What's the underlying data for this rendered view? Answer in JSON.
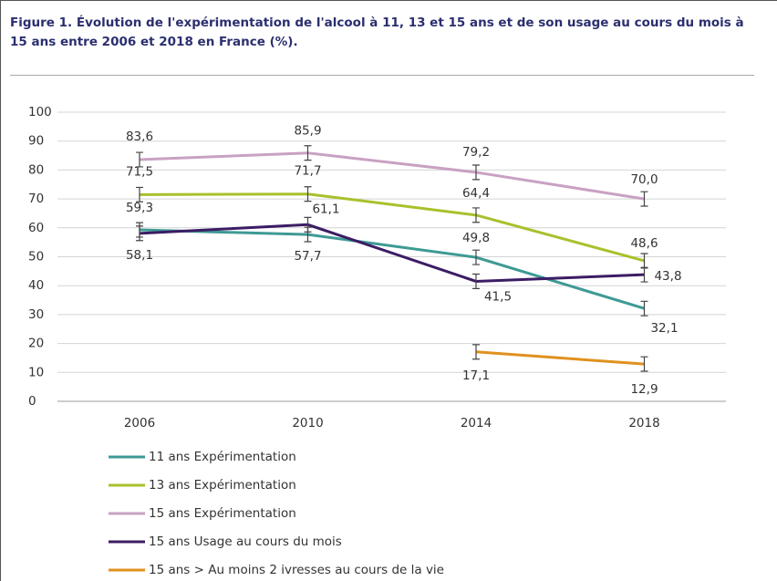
{
  "chart_data": {
    "type": "line",
    "title": "Figure 1.  Évolution de l'expérimentation de l'alcool à 11, 13 et 15 ans et de son usage au cours du mois à 15 ans entre 2006 et 2018 en France (%).",
    "categories": [
      "2006",
      "2010",
      "2014",
      "2018"
    ],
    "ylim": [
      0,
      100
    ],
    "yticks": [
      0,
      10,
      20,
      30,
      40,
      50,
      60,
      70,
      80,
      90,
      100
    ],
    "grid": true,
    "legend": "bottom",
    "series": [
      {
        "name": "11 ans Expérimentation",
        "color": "#3e9a94",
        "values": [
          59.3,
          57.7,
          49.8,
          32.1
        ],
        "value_labels": [
          "59,3",
          "57,7",
          "49,8",
          "32,1"
        ],
        "errors": [
          2.5,
          2.5,
          2.5,
          2.5
        ]
      },
      {
        "name": "13 ans Expérimentation",
        "color": "#a8c12c",
        "values": [
          71.5,
          71.7,
          64.4,
          48.6
        ],
        "value_labels": [
          "71,5",
          "71,7",
          "64,4",
          "48,6"
        ],
        "errors": [
          2.5,
          2.5,
          2.5,
          2.5
        ]
      },
      {
        "name": "15 ans Expérimentation",
        "color": "#c9a1c3",
        "values": [
          83.6,
          85.9,
          79.2,
          70.0
        ],
        "value_labels": [
          "83,6",
          "85,9",
          "79,2",
          "70,0"
        ],
        "errors": [
          2.5,
          2.5,
          2.5,
          2.5
        ]
      },
      {
        "name": "15 ans Usage au cours du mois",
        "color": "#3c1c64",
        "values": [
          58.1,
          61.1,
          41.5,
          43.8
        ],
        "value_labels": [
          "58,1",
          "61,1",
          "41,5",
          "43,8"
        ],
        "errors": [
          2.5,
          2.5,
          2.5,
          2.5
        ]
      },
      {
        "name": "15 ans > Au moins 2 ivresses au cours de la vie",
        "color": "#e0911f",
        "values": [
          null,
          null,
          17.1,
          12.9
        ],
        "value_labels": [
          null,
          null,
          "17,1",
          "12,9"
        ],
        "errors": [
          null,
          null,
          2.5,
          2.5
        ]
      }
    ]
  }
}
